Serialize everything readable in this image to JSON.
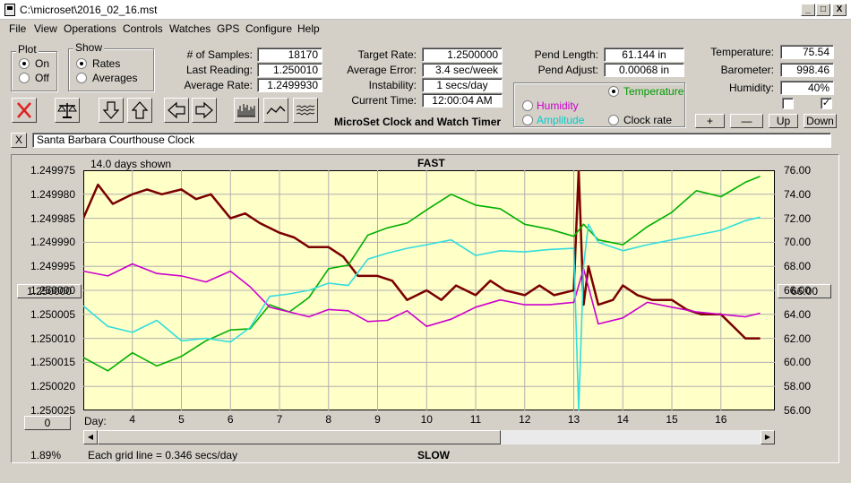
{
  "window": {
    "title": "C:\\microset\\2016_02_16.mst",
    "minimize": "_",
    "maximize": "□",
    "close": "X"
  },
  "menu": [
    "File",
    "View",
    "Operations",
    "Controls",
    "Watches",
    "GPS",
    "Configure",
    "Help"
  ],
  "plot_group": {
    "title": "Plot",
    "on": "On",
    "off": "Off",
    "selected": "On"
  },
  "show_group": {
    "title": "Show",
    "rates": "Rates",
    "averages": "Averages",
    "selected": "Rates"
  },
  "stats": {
    "samples_label": "# of Samples:",
    "samples": "18170",
    "last_label": "Last Reading:",
    "last": "1.250010",
    "avg_label": "Average Rate:",
    "avg": "1.2499930"
  },
  "rates": {
    "target_label": "Target Rate:",
    "target": "1.2500000",
    "error_label": "Average Error:",
    "error": "3.4 sec/week",
    "instab_label": "Instability:",
    "instab": "1 secs/day",
    "time_label": "Current Time:",
    "time": "12:00:04 AM"
  },
  "app_caption": "MicroSet Clock and Watch Timer",
  "pend": {
    "length_label": "Pend Length:",
    "length": "61.144 in",
    "adjust_label": "Pend Adjust:",
    "adjust": "0.00068 in"
  },
  "trace_select": {
    "temperature": "Temperature",
    "humidity": "Humidity",
    "amplitude": "Amplitude",
    "clock_rate": "Clock rate",
    "selected": "Temperature",
    "colors": {
      "temperature": "#009900",
      "humidity": "#cc00cc",
      "amplitude": "#00cccc",
      "clock_rate": "#000000"
    }
  },
  "environment": {
    "temp_label": "Temperature:",
    "temp": "75.54",
    "baro_label": "Barometer:",
    "baro": "998.46",
    "hum_label": "Humidity:",
    "hum": "40%",
    "check1": "",
    "check2": "✓"
  },
  "env_buttons": {
    "plus": "+",
    "minus": "—",
    "up": "Up",
    "down": "Down"
  },
  "toolbar_icons": [
    "delete-icon",
    "balance-scale-icon",
    "arrow-down-icon",
    "arrow-up-icon",
    "arrow-left-icon",
    "arrow-right-icon",
    "bar-waveform-icon",
    "line-waveform-icon",
    "noise-waveform-icon"
  ],
  "clock_name": {
    "close": "X",
    "value": "Santa Barbara Courthouse Clock"
  },
  "chart_labels": {
    "days_shown": "14.0 days shown",
    "fast": "FAST",
    "slow": "SLOW",
    "day_label": "Day:",
    "grid_note": "Each grid line = 0.346 secs/day",
    "percent": "1.89%",
    "left_button": "1.250000",
    "right_button": "66.00",
    "bottom_button": "0"
  },
  "chart_data": {
    "type": "line",
    "x_ticks": [
      "4",
      "5",
      "6",
      "7",
      "8",
      "9",
      "10",
      "11",
      "12",
      "13",
      "14",
      "15",
      "16"
    ],
    "x_tick_values": [
      4,
      5,
      6,
      7,
      8,
      9,
      10,
      11,
      12,
      13,
      14,
      15,
      16
    ],
    "x_range": [
      3,
      17.1
    ],
    "y_left_ticks": [
      "1.249975",
      "1.249980",
      "1.249985",
      "1.249990",
      "1.249995",
      "1.250000",
      "1.250005",
      "1.250010",
      "1.250015",
      "1.250020",
      "1.250025"
    ],
    "y_left_range": [
      1.249975,
      1.250025
    ],
    "y_left_inverted": true,
    "y_right_ticks": [
      "76.00",
      "74.00",
      "72.00",
      "70.00",
      "68.00",
      "66.00",
      "64.00",
      "62.00",
      "60.00",
      "58.00",
      "56.00"
    ],
    "y_right_range": [
      56,
      76
    ],
    "grid": true,
    "background": "#ffffc8",
    "series": [
      {
        "color": "#7a0000",
        "axis": "left",
        "x": [
          3,
          3.3,
          3.6,
          4.0,
          4.3,
          4.6,
          5.0,
          5.3,
          5.6,
          6.0,
          6.3,
          6.6,
          7.0,
          7.3,
          7.6,
          8.0,
          8.3,
          8.6,
          9.0,
          9.3,
          9.6,
          10.0,
          10.3,
          10.6,
          11.0,
          11.3,
          11.6,
          12.0,
          12.3,
          12.6,
          13.0,
          13.1,
          13.2,
          13.3,
          13.5,
          13.8,
          14.0,
          14.3,
          14.6,
          15.0,
          15.3,
          15.6,
          16.0,
          16.3,
          16.5,
          16.8
        ],
        "y": [
          1.249985,
          1.249978,
          1.249982,
          1.24998,
          1.249979,
          1.24998,
          1.249979,
          1.249981,
          1.24998,
          1.249985,
          1.249984,
          1.249986,
          1.249988,
          1.249989,
          1.249991,
          1.249991,
          1.249993,
          1.249997,
          1.249997,
          1.249998,
          1.250002,
          1.25,
          1.250002,
          1.249999,
          1.250001,
          1.249998,
          1.25,
          1.250001,
          1.249999,
          1.250001,
          1.25,
          1.249975,
          1.250003,
          1.249995,
          1.250003,
          1.250002,
          1.249999,
          1.250001,
          1.250002,
          1.250002,
          1.250004,
          1.250005,
          1.250005,
          1.250008,
          1.25001,
          1.25001
        ]
      },
      {
        "color": "#00b000",
        "axis": "right",
        "x": [
          3,
          3.5,
          4.0,
          4.5,
          5.0,
          5.5,
          6.0,
          6.4,
          6.8,
          7.2,
          7.6,
          8.0,
          8.4,
          8.8,
          9.2,
          9.6,
          10.0,
          10.5,
          11.0,
          11.5,
          12.0,
          12.5,
          13.0,
          13.2,
          13.5,
          14.0,
          14.5,
          15.0,
          15.5,
          16.0,
          16.5,
          16.8
        ],
        "y": [
          60.4,
          59.3,
          60.8,
          59.7,
          60.5,
          61.8,
          62.7,
          62.8,
          64.8,
          64.2,
          65.4,
          67.8,
          68.1,
          70.6,
          71.2,
          71.6,
          72.7,
          74.0,
          73.1,
          72.8,
          71.5,
          71.1,
          70.5,
          71.5,
          70.2,
          69.8,
          71.3,
          72.5,
          74.3,
          73.8,
          75.0,
          75.5
        ]
      },
      {
        "color": "#cc00cc",
        "axis": "right",
        "x": [
          3,
          3.5,
          4.0,
          4.5,
          5.0,
          5.5,
          6.0,
          6.4,
          6.8,
          7.2,
          7.6,
          8.0,
          8.4,
          8.8,
          9.2,
          9.6,
          10.0,
          10.5,
          11.0,
          11.5,
          12.0,
          12.5,
          13.0,
          13.2,
          13.5,
          14.0,
          14.5,
          15.0,
          15.5,
          16.0,
          16.5,
          16.8
        ],
        "y": [
          67.6,
          67.2,
          68.2,
          67.4,
          67.2,
          66.7,
          67.6,
          66.3,
          64.6,
          64.2,
          63.8,
          64.4,
          64.3,
          63.4,
          63.5,
          64.3,
          63.0,
          63.6,
          64.6,
          65.2,
          64.8,
          64.8,
          65.0,
          67.8,
          63.2,
          63.7,
          65.0,
          64.6,
          64.2,
          64.0,
          63.8,
          64.1
        ]
      },
      {
        "color": "#33dddd",
        "axis": "right",
        "x": [
          3,
          3.5,
          4.0,
          4.5,
          5.0,
          5.5,
          6.0,
          6.4,
          6.8,
          7.2,
          7.6,
          8.0,
          8.4,
          8.8,
          9.2,
          9.6,
          10.0,
          10.5,
          11.0,
          11.5,
          12.0,
          12.5,
          13.0,
          13.1,
          13.2,
          13.3,
          13.5,
          14.0,
          14.5,
          15.0,
          15.5,
          16.0,
          16.5,
          16.8
        ],
        "y": [
          64.7,
          63.0,
          62.5,
          63.5,
          61.8,
          62.0,
          61.7,
          62.9,
          65.5,
          65.7,
          66.0,
          66.6,
          66.4,
          68.6,
          69.1,
          69.5,
          69.8,
          70.2,
          68.9,
          69.3,
          69.2,
          69.4,
          69.5,
          56.0,
          68.1,
          71.5,
          70.0,
          69.3,
          69.8,
          70.2,
          70.6,
          71.0,
          71.8,
          72.1
        ]
      }
    ]
  }
}
